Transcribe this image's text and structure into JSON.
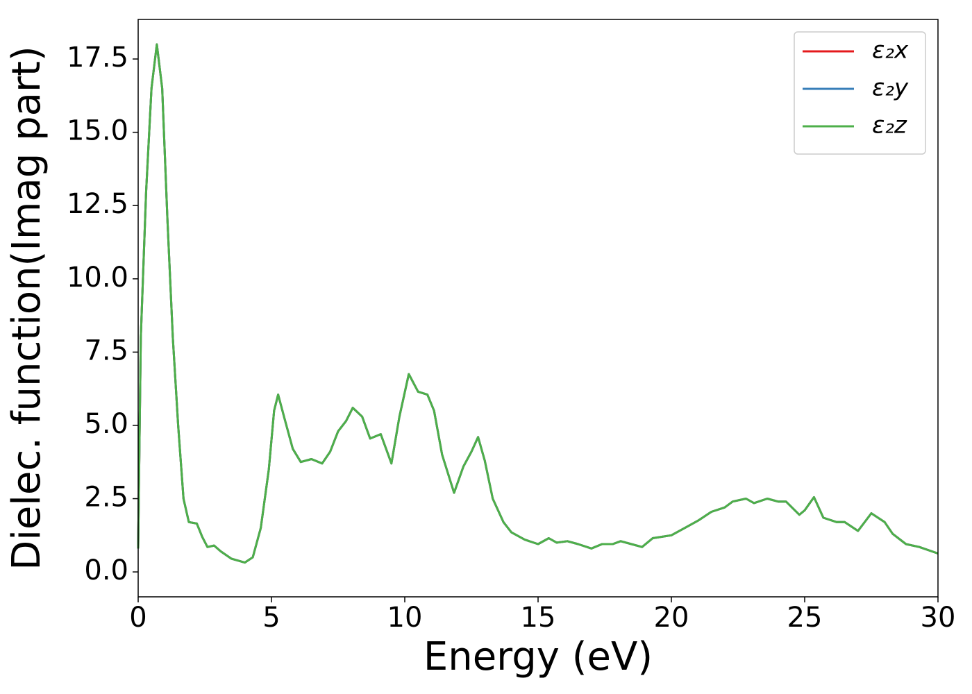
{
  "chart_data": {
    "type": "line",
    "xlabel": "Energy (eV)",
    "ylabel": "Dielec. function(Imag part)",
    "x": [
      0,
      0.1,
      0.3,
      0.5,
      0.7,
      0.9,
      1.1,
      1.3,
      1.5,
      1.7,
      1.9,
      2.2,
      2.4,
      2.6,
      2.85,
      3.1,
      3.5,
      4.0,
      4.3,
      4.6,
      4.9,
      5.1,
      5.25,
      5.5,
      5.8,
      6.1,
      6.5,
      6.9,
      7.2,
      7.5,
      7.8,
      8.05,
      8.4,
      8.7,
      9.1,
      9.5,
      9.8,
      10.15,
      10.5,
      10.85,
      11.1,
      11.4,
      11.85,
      12.2,
      12.5,
      12.75,
      13.0,
      13.3,
      13.7,
      14.0,
      14.5,
      15.0,
      15.4,
      15.7,
      16.1,
      16.5,
      17.0,
      17.4,
      17.8,
      18.1,
      18.5,
      18.9,
      19.3,
      20.0,
      20.5,
      21.0,
      21.5,
      22.0,
      22.3,
      22.8,
      23.1,
      23.6,
      24.0,
      24.3,
      24.8,
      25.0,
      25.35,
      25.7,
      26.2,
      26.5,
      27.0,
      27.5,
      28.0,
      28.3,
      28.8,
      29.3,
      30.0
    ],
    "series": [
      {
        "name": "ε₂x",
        "color": "#e41a1c",
        "values": [
          0.8,
          8,
          13,
          16.5,
          18.0,
          16.5,
          12,
          8,
          5,
          2.5,
          1.7,
          1.65,
          1.2,
          0.85,
          0.9,
          0.7,
          0.45,
          0.32,
          0.5,
          1.5,
          3.5,
          5.5,
          6.05,
          5.2,
          4.2,
          3.75,
          3.85,
          3.7,
          4.1,
          4.8,
          5.15,
          5.6,
          5.3,
          4.55,
          4.7,
          3.7,
          5.3,
          6.75,
          6.15,
          6.05,
          5.5,
          4.0,
          2.7,
          3.6,
          4.1,
          4.6,
          3.8,
          2.5,
          1.7,
          1.35,
          1.1,
          0.95,
          1.15,
          1.0,
          1.05,
          0.95,
          0.8,
          0.95,
          0.95,
          1.05,
          0.95,
          0.85,
          1.15,
          1.25,
          1.5,
          1.75,
          2.05,
          2.2,
          2.4,
          2.5,
          2.35,
          2.5,
          2.4,
          2.4,
          1.95,
          2.1,
          2.55,
          1.85,
          1.7,
          1.7,
          1.4,
          2.0,
          1.7,
          1.3,
          0.95,
          0.85,
          0.63
        ]
      },
      {
        "name": "ε₂y",
        "color": "#377eb8",
        "values": [
          0.8,
          8,
          13,
          16.5,
          18.0,
          16.5,
          12,
          8,
          5,
          2.5,
          1.7,
          1.65,
          1.2,
          0.85,
          0.9,
          0.7,
          0.45,
          0.32,
          0.5,
          1.5,
          3.5,
          5.5,
          6.05,
          5.2,
          4.2,
          3.75,
          3.85,
          3.7,
          4.1,
          4.8,
          5.15,
          5.6,
          5.3,
          4.55,
          4.7,
          3.7,
          5.3,
          6.75,
          6.15,
          6.05,
          5.5,
          4.0,
          2.7,
          3.6,
          4.1,
          4.6,
          3.8,
          2.5,
          1.7,
          1.35,
          1.1,
          0.95,
          1.15,
          1.0,
          1.05,
          0.95,
          0.8,
          0.95,
          0.95,
          1.05,
          0.95,
          0.85,
          1.15,
          1.25,
          1.5,
          1.75,
          2.05,
          2.2,
          2.4,
          2.5,
          2.35,
          2.5,
          2.4,
          2.4,
          1.95,
          2.1,
          2.55,
          1.85,
          1.7,
          1.7,
          1.4,
          2.0,
          1.7,
          1.3,
          0.95,
          0.85,
          0.63
        ]
      },
      {
        "name": "ε₂z",
        "color": "#4daf4a",
        "values": [
          0.8,
          8,
          13,
          16.5,
          18.0,
          16.5,
          12,
          8,
          5,
          2.5,
          1.7,
          1.65,
          1.2,
          0.85,
          0.9,
          0.7,
          0.45,
          0.32,
          0.5,
          1.5,
          3.5,
          5.5,
          6.05,
          5.2,
          4.2,
          3.75,
          3.85,
          3.7,
          4.1,
          4.8,
          5.15,
          5.6,
          5.3,
          4.55,
          4.7,
          3.7,
          5.3,
          6.75,
          6.15,
          6.05,
          5.5,
          4.0,
          2.7,
          3.6,
          4.1,
          4.6,
          3.8,
          2.5,
          1.7,
          1.35,
          1.1,
          0.95,
          1.15,
          1.0,
          1.05,
          0.95,
          0.8,
          0.95,
          0.95,
          1.05,
          0.95,
          0.85,
          1.15,
          1.25,
          1.5,
          1.75,
          2.05,
          2.2,
          2.4,
          2.5,
          2.35,
          2.5,
          2.4,
          2.4,
          1.95,
          2.1,
          2.55,
          1.85,
          1.7,
          1.7,
          1.4,
          2.0,
          1.7,
          1.3,
          0.95,
          0.85,
          0.63
        ]
      }
    ],
    "xlim": [
      0,
      30
    ],
    "xticks": [
      0,
      5,
      10,
      15,
      20,
      25,
      30
    ],
    "ylim": [
      -0.85,
      18.85
    ],
    "yticks": [
      {
        "value": 0,
        "label": "0.0"
      },
      2.5,
      {
        "value": 5,
        "label": "5.0"
      },
      7.5,
      {
        "value": 10,
        "label": "10.0"
      },
      12.5,
      {
        "value": 15,
        "label": "15.0"
      },
      17.5
    ],
    "legend": "upper right",
    "grid": false
  }
}
